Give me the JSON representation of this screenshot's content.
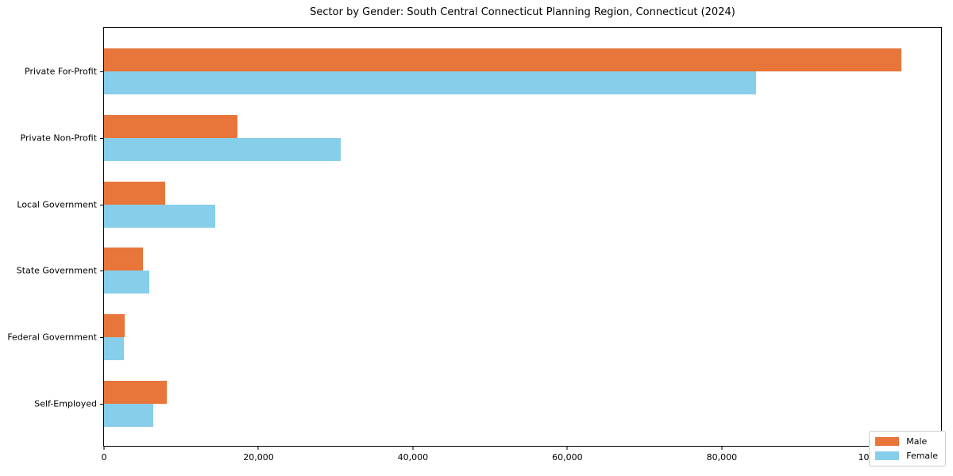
{
  "title": "Sector by Gender: South Central Connecticut Planning Region, Connecticut (2024)",
  "colors": {
    "male": "#e8763b",
    "female": "#87ceeb",
    "axis": "#000000",
    "legend_border": "#cccccc",
    "background": "#ffffff"
  },
  "chart_data": {
    "type": "bar",
    "orientation": "horizontal",
    "title": "Sector by Gender: South Central Connecticut Planning Region, Connecticut (2024)",
    "categories": [
      "Private For-Profit",
      "Private Non-Profit",
      "Local Government",
      "State Government",
      "Federal Government",
      "Self-Employed"
    ],
    "series": [
      {
        "name": "Male",
        "color": "#e8763b",
        "values": [
          103300,
          17300,
          7900,
          5000,
          2700,
          8100
        ]
      },
      {
        "name": "Female",
        "color": "#87ceeb",
        "values": [
          84400,
          30600,
          14400,
          5900,
          2600,
          6400
        ]
      }
    ],
    "xlabel": "",
    "ylabel": "",
    "xlim": [
      0,
      108400
    ],
    "x_ticks": [
      0,
      20000,
      40000,
      60000,
      80000,
      100000
    ],
    "x_tick_labels": [
      "0",
      "20,000",
      "40,000",
      "60,000",
      "80,000",
      "100,000"
    ],
    "grid": false,
    "legend": {
      "position": "lower right",
      "entries": [
        "Male",
        "Female"
      ]
    }
  }
}
